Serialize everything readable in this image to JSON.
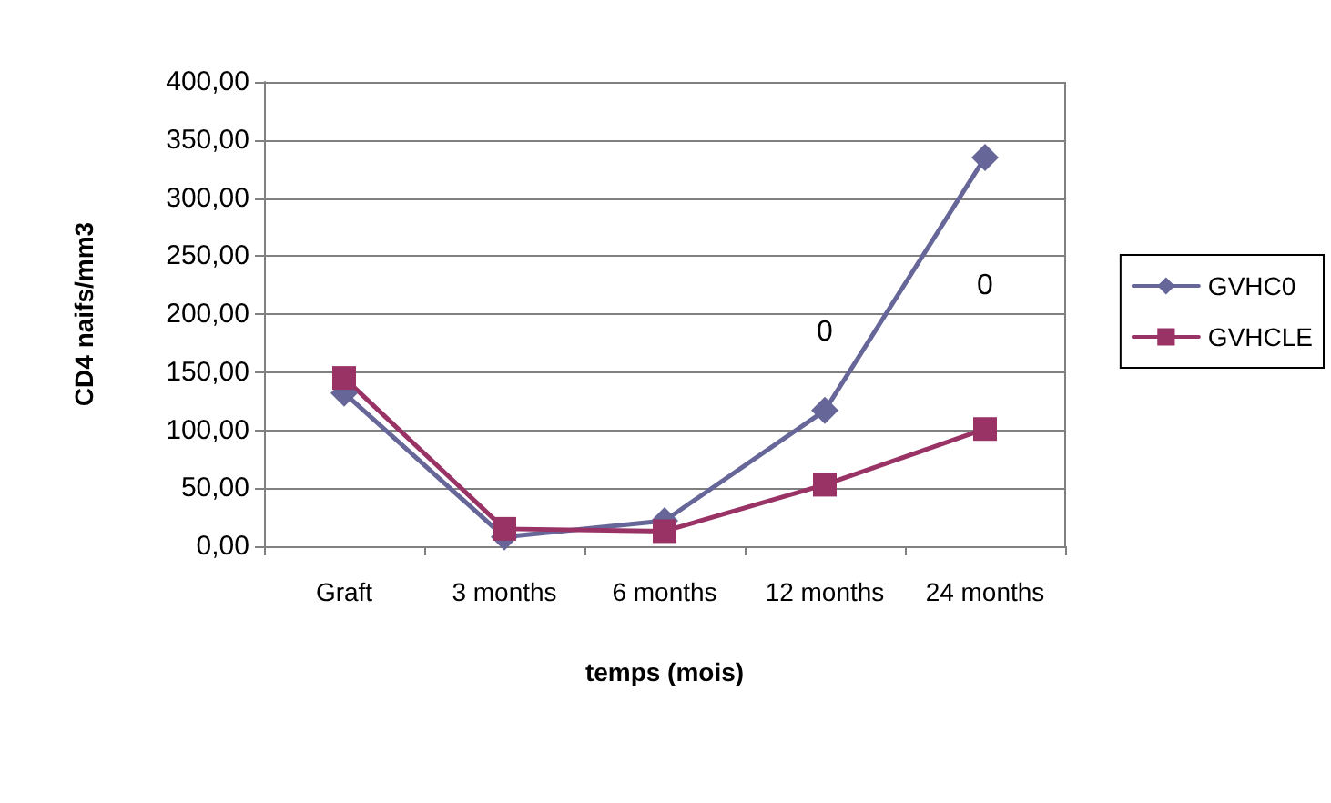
{
  "chart_data": {
    "type": "line",
    "xlabel": "temps (mois)",
    "ylabel": "CD4 naifs/mm3",
    "categories": [
      "Graft",
      "3 months",
      "6 months",
      "12 months",
      "24 months"
    ],
    "series": [
      {
        "name": "GVHC0",
        "color": "#666699",
        "marker": "diamond",
        "values": [
          132,
          8,
          22,
          117,
          335
        ]
      },
      {
        "name": "GVHCLE",
        "color": "#993366",
        "marker": "square",
        "values": [
          145,
          15,
          13,
          53,
          101
        ]
      }
    ],
    "ylim": [
      0,
      400
    ],
    "yticks": [
      {
        "value": 0,
        "label": "0,00"
      },
      {
        "value": 50,
        "label": "50,00"
      },
      {
        "value": 100,
        "label": "100,00"
      },
      {
        "value": 150,
        "label": "150,00"
      },
      {
        "value": 200,
        "label": "200,00"
      },
      {
        "value": 250,
        "label": "250,00"
      },
      {
        "value": 300,
        "label": "300,00"
      },
      {
        "value": 350,
        "label": "350,00"
      },
      {
        "value": 400,
        "label": "400,00"
      }
    ],
    "annotations": [
      "0",
      "0"
    ],
    "grid": "y",
    "legend": "right",
    "line_style": "solid"
  }
}
